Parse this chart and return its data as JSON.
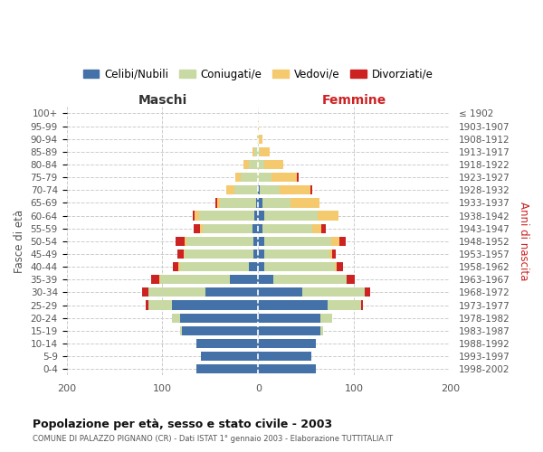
{
  "age_groups": [
    "0-4",
    "5-9",
    "10-14",
    "15-19",
    "20-24",
    "25-29",
    "30-34",
    "35-39",
    "40-44",
    "45-49",
    "50-54",
    "55-59",
    "60-64",
    "65-69",
    "70-74",
    "75-79",
    "80-84",
    "85-89",
    "90-94",
    "95-99",
    "100+"
  ],
  "birth_years": [
    "1998-2002",
    "1993-1997",
    "1988-1992",
    "1983-1987",
    "1978-1982",
    "1973-1977",
    "1968-1972",
    "1963-1967",
    "1958-1962",
    "1953-1957",
    "1948-1952",
    "1943-1947",
    "1938-1942",
    "1933-1937",
    "1928-1932",
    "1923-1927",
    "1918-1922",
    "1913-1917",
    "1908-1912",
    "1903-1907",
    "≤ 1902"
  ],
  "males": {
    "celibi": [
      65,
      60,
      65,
      80,
      82,
      90,
      55,
      30,
      10,
      5,
      5,
      6,
      4,
      2,
      0,
      0,
      0,
      0,
      0,
      0,
      0
    ],
    "coniugati": [
      0,
      0,
      0,
      2,
      8,
      25,
      60,
      72,
      72,
      72,
      70,
      52,
      58,
      38,
      25,
      18,
      10,
      4,
      1,
      0,
      0
    ],
    "vedovi": [
      0,
      0,
      0,
      0,
      0,
      0,
      0,
      1,
      1,
      1,
      2,
      3,
      4,
      3,
      8,
      6,
      5,
      2,
      0,
      0,
      0
    ],
    "divorziati": [
      0,
      0,
      0,
      0,
      0,
      2,
      6,
      9,
      6,
      6,
      9,
      6,
      2,
      2,
      0,
      0,
      0,
      0,
      0,
      0,
      0
    ]
  },
  "females": {
    "nubili": [
      60,
      55,
      60,
      65,
      65,
      72,
      46,
      16,
      6,
      6,
      6,
      4,
      6,
      4,
      2,
      0,
      0,
      0,
      0,
      0,
      0
    ],
    "coniugate": [
      0,
      0,
      0,
      3,
      12,
      35,
      65,
      76,
      74,
      68,
      70,
      52,
      56,
      30,
      20,
      14,
      6,
      2,
      1,
      0,
      0
    ],
    "vedove": [
      0,
      0,
      0,
      0,
      0,
      0,
      0,
      0,
      2,
      3,
      9,
      10,
      22,
      30,
      32,
      26,
      20,
      10,
      3,
      1,
      0
    ],
    "divorziate": [
      0,
      0,
      0,
      0,
      0,
      2,
      6,
      9,
      6,
      4,
      6,
      4,
      0,
      0,
      2,
      2,
      0,
      0,
      0,
      0,
      0
    ]
  },
  "colors": {
    "celibi": "#4472a8",
    "coniugati": "#c8d9a3",
    "vedovi": "#f5c96e",
    "divorziati": "#cc2222"
  },
  "title": "Popolazione per età, sesso e stato civile - 2003",
  "subtitle": "COMUNE DI PALAZZO PIGNANO (CR) - Dati ISTAT 1° gennaio 2003 - Elaborazione TUTTITALIA.IT",
  "xlabel_left": "Maschi",
  "xlabel_right": "Femmine",
  "ylabel_left": "Fasce di età",
  "ylabel_right": "Anni di nascita",
  "xlim": 200,
  "background_color": "#ffffff",
  "grid_color": "#cccccc",
  "legend_labels": [
    "Celibi/Nubili",
    "Coniugati/e",
    "Vedovi/e",
    "Divorziati/e"
  ]
}
